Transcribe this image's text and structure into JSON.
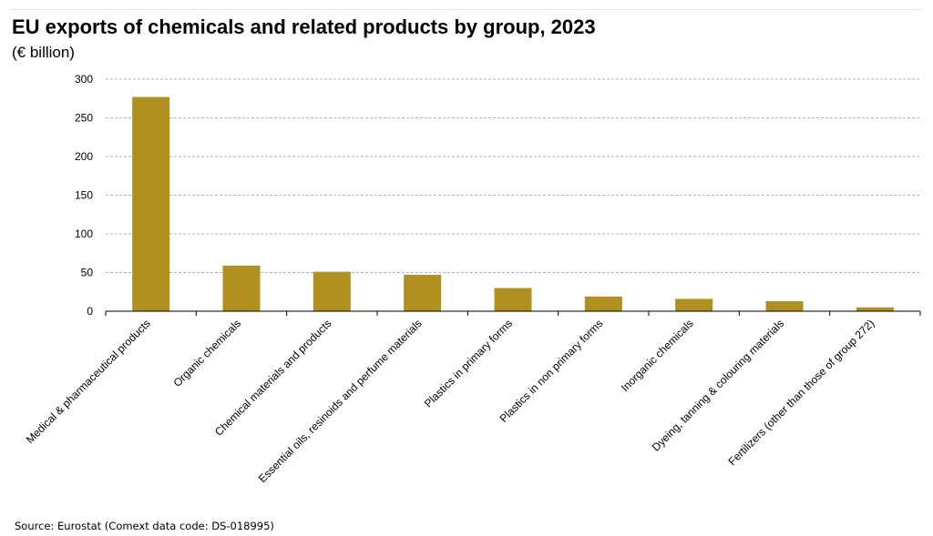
{
  "chart_data": {
    "type": "bar",
    "title": "EU exports of chemicals and related products by group, 2023",
    "subtitle": "(€ billion)",
    "categories": [
      "Medical & pharmaceutical products",
      "Organic chemicals",
      "Chemical materials and products",
      "Essential oils, resinoids and perfume materials",
      "Plastics in primary forms",
      "Plastics in non primary forms",
      "Inorganic chemicals",
      "Dyeing, tanning & colouring materials",
      "Fertilizers (other than those of group 272)"
    ],
    "values": [
      277,
      59,
      51,
      47,
      30,
      19,
      16,
      13,
      5
    ],
    "ylim": [
      0,
      300
    ],
    "yticks": [
      0,
      50,
      100,
      150,
      200,
      250,
      300
    ],
    "grid": true,
    "legend": "none",
    "bar_color": "#B09020",
    "xlabel": "",
    "ylabel": ""
  },
  "source": "Source: Eurostat (Comext data code: DS-018995)"
}
